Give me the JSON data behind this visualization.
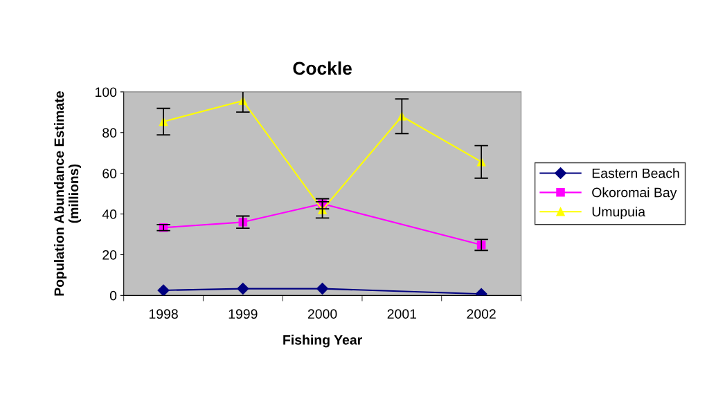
{
  "chart_data": {
    "type": "line",
    "title": "Cockle",
    "xlabel": "Fishing Year",
    "ylabel": "Population Abundance Estimate\n(millions)",
    "categories": [
      "1998",
      "1999",
      "2000",
      "2001",
      "2002"
    ],
    "series": [
      {
        "name": "Eastern Beach",
        "color": "#000080",
        "marker": "diamond",
        "values": [
          2.5,
          3.3,
          3.3,
          null,
          0.7
        ]
      },
      {
        "name": "Okoromai Bay",
        "color": "#ff00ff",
        "marker": "square",
        "values": [
          33.3,
          36,
          45,
          null,
          24.8
        ],
        "errors": [
          1.5,
          3,
          2.5,
          null,
          2.7
        ]
      },
      {
        "name": "Umupuia",
        "color": "#ffff00",
        "marker": "triangle",
        "values": [
          85.4,
          95.6,
          42,
          88,
          65.6
        ],
        "errors": [
          6.5,
          5.5,
          4,
          8.5,
          8
        ]
      }
    ],
    "ylim": [
      0,
      100
    ],
    "yticks": [
      0,
      20,
      40,
      60,
      80,
      100
    ],
    "grid": false,
    "legend": "right",
    "line_style": "solid"
  }
}
